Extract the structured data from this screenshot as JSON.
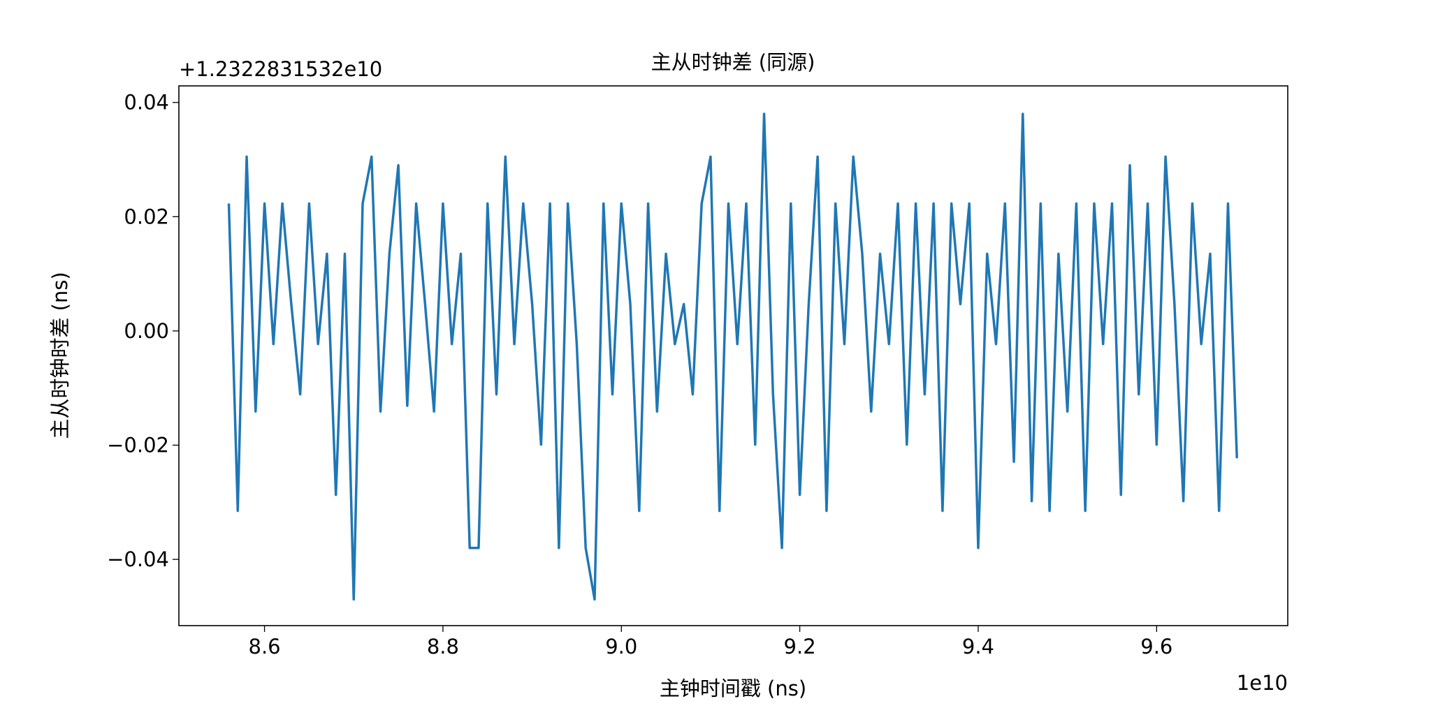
{
  "chart_data": {
    "type": "line",
    "title": "主从时钟差 (同源)",
    "xlabel": "主钟时间戳 (ns)",
    "ylabel": "主从时钟时差 (ns)",
    "x_offset": "1e10",
    "y_offset": "+1.2322831532e10",
    "series": [
      {
        "color": "#1f77b4",
        "x": [
          8.56,
          8.57,
          8.58,
          8.59,
          8.6,
          8.61,
          8.62,
          8.63,
          8.64,
          8.65,
          8.66,
          8.67,
          8.68,
          8.69,
          8.7,
          8.71,
          8.72,
          8.73,
          8.74,
          8.75,
          8.76,
          8.77,
          8.78,
          8.79,
          8.8,
          8.81,
          8.82,
          8.83,
          8.84,
          8.85,
          8.86,
          8.87,
          8.88,
          8.89,
          8.9,
          8.91,
          8.92,
          8.93,
          8.94,
          8.95,
          8.96,
          8.97,
          8.98,
          8.99,
          9.0,
          9.01,
          9.02,
          9.03,
          9.04,
          9.05,
          9.06,
          9.07,
          9.08,
          9.09,
          9.1,
          9.11,
          9.12,
          9.13,
          9.14,
          9.15,
          9.16,
          9.17,
          9.18,
          9.19,
          9.2,
          9.21,
          9.22,
          9.23,
          9.24,
          9.25,
          9.26,
          9.27,
          9.28,
          9.29,
          9.3,
          9.31,
          9.32,
          9.33,
          9.34,
          9.35,
          9.36,
          9.37,
          9.38,
          9.39,
          9.4,
          9.41,
          9.42,
          9.43,
          9.44,
          9.45,
          9.46,
          9.47,
          9.48,
          9.49,
          9.5,
          9.51,
          9.52,
          9.53,
          9.54,
          9.55,
          9.56,
          9.57,
          9.58,
          9.59,
          9.6,
          9.61,
          9.62,
          9.63,
          9.64,
          9.65,
          9.66,
          9.67,
          9.68,
          9.69
        ],
        "values": [
          0.0223,
          -0.0315,
          0.0305,
          -0.0141,
          0.0223,
          -0.0023,
          0.0223,
          0.0047,
          -0.0111,
          0.0223,
          -0.0023,
          0.0135,
          -0.0287,
          0.0135,
          -0.047,
          0.0223,
          0.0305,
          -0.0141,
          0.0135,
          0.029,
          -0.0131,
          0.0223,
          0.0047,
          -0.0141,
          0.0223,
          -0.0023,
          0.0135,
          -0.038,
          -0.038,
          0.0223,
          -0.0111,
          0.0305,
          -0.0023,
          0.0223,
          0.0047,
          -0.0199,
          0.0223,
          -0.038,
          0.0223,
          -0.0023,
          -0.038,
          -0.047,
          0.0223,
          -0.0111,
          0.0223,
          0.0047,
          -0.0315,
          0.0223,
          -0.0141,
          0.0135,
          -0.0023,
          0.0047,
          -0.0111,
          0.0223,
          0.0305,
          -0.0315,
          0.0223,
          -0.0023,
          0.0223,
          -0.0199,
          0.038,
          -0.0111,
          -0.038,
          0.0223,
          -0.0287,
          0.0047,
          0.0305,
          -0.0315,
          0.0223,
          -0.0023,
          0.0305,
          0.0135,
          -0.0141,
          0.0135,
          -0.0023,
          0.0223,
          -0.0199,
          0.0223,
          -0.0111,
          0.0223,
          -0.0315,
          0.0223,
          0.0047,
          0.0223,
          -0.038,
          0.0135,
          -0.0023,
          0.0223,
          -0.0229,
          0.038,
          -0.0298,
          0.0223,
          -0.0315,
          0.0135,
          -0.0141,
          0.0223,
          -0.0315,
          0.0223,
          -0.0023,
          0.0223,
          -0.0287,
          0.029,
          -0.0111,
          0.0223,
          -0.0199,
          0.0305,
          0.0047,
          -0.0298,
          0.0223,
          -0.0023,
          0.0135,
          -0.0315,
          0.0223,
          -0.0223
        ]
      }
    ],
    "xlim": [
      8.504,
      9.747
    ],
    "ylim": [
      -0.0516,
      0.0429
    ],
    "xticks": [
      8.6,
      8.8,
      {
        "value": 9.0,
        "label": "9.0"
      },
      9.2,
      9.4,
      9.6
    ],
    "yticks": [
      {
        "value": -0.04,
        "label": "−0.04"
      },
      {
        "value": -0.02,
        "label": "−0.02"
      },
      {
        "value": 0,
        "label": "0.00"
      },
      0.02,
      0.04
    ]
  }
}
